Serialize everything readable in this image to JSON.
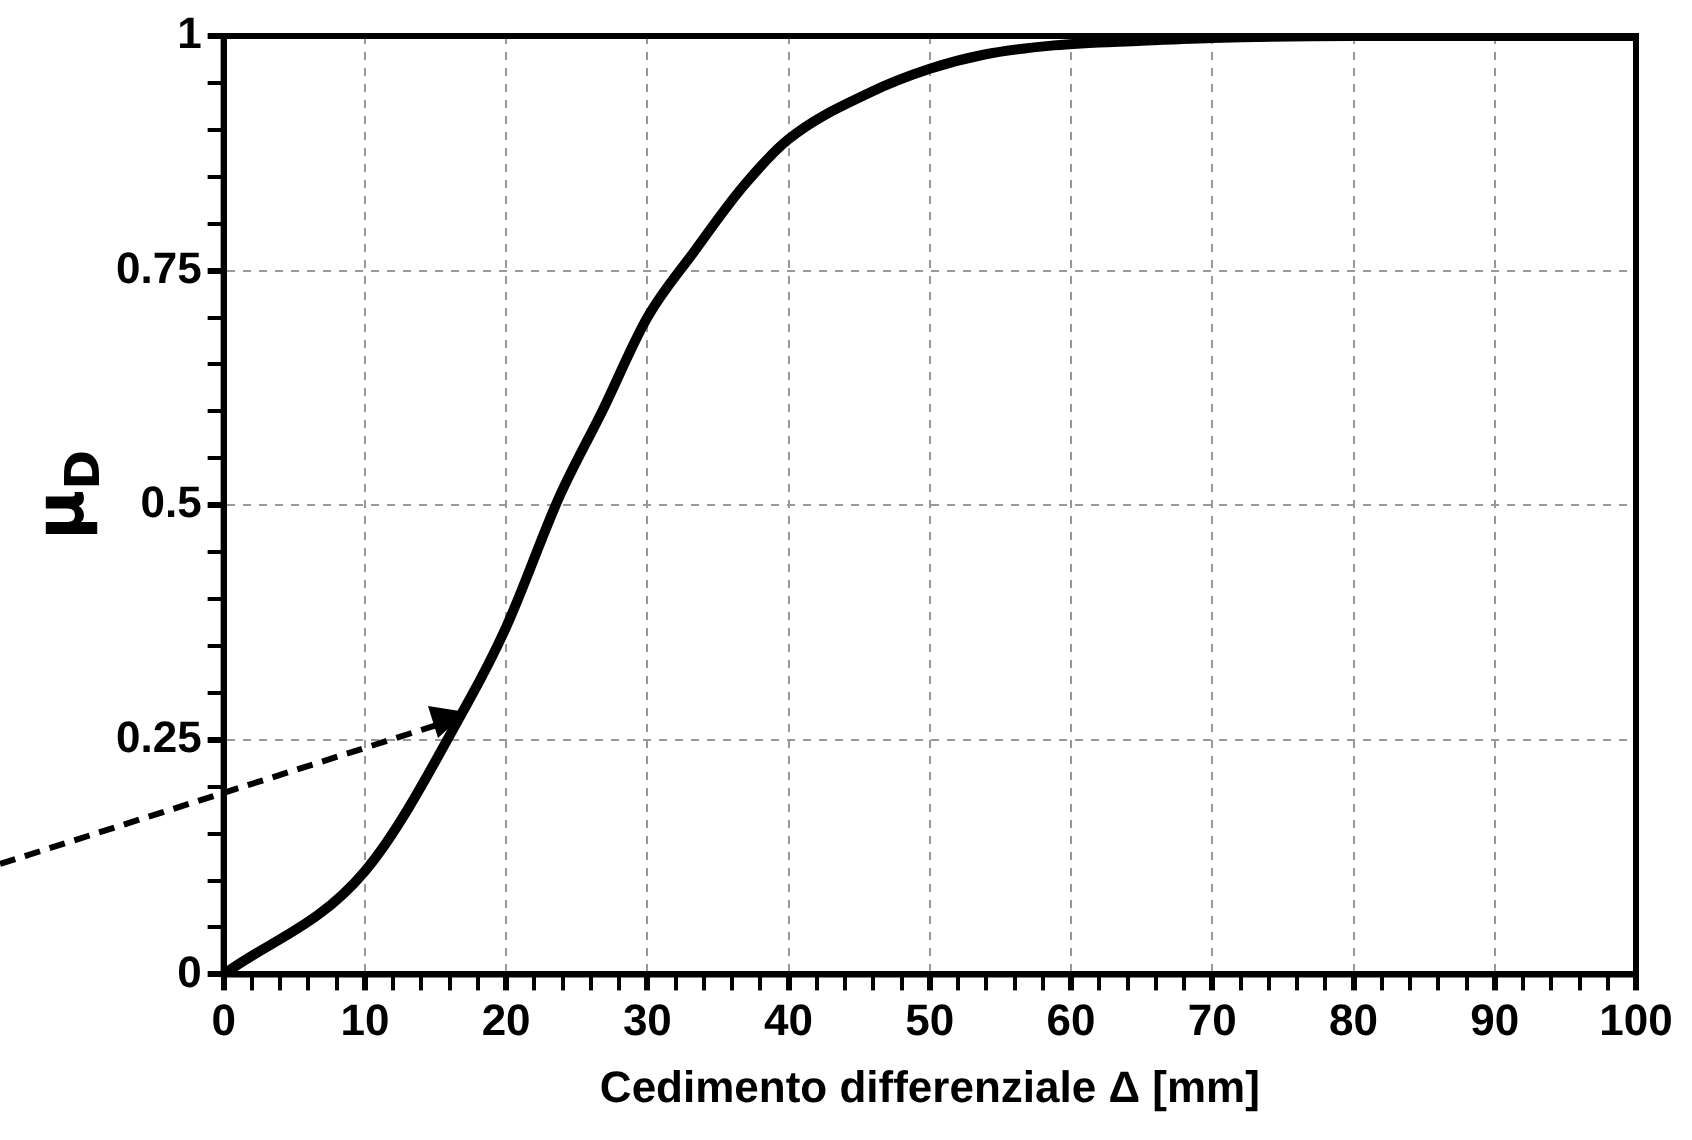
{
  "chart_data": {
    "type": "line",
    "xlabel": "Cedimento differenziale Δ [mm]",
    "ylabel": "μ$_{D}$",
    "xlim": [
      0,
      100
    ],
    "ylim": [
      0,
      1
    ],
    "xticks": [
      0,
      {
        "value": 2,
        "label": null
      },
      {
        "value": 4,
        "label": null
      },
      {
        "value": 6,
        "label": null
      },
      {
        "value": 8,
        "label": null
      },
      10,
      {
        "value": 12,
        "label": null
      },
      {
        "value": 14,
        "label": null
      },
      {
        "value": 16,
        "label": null
      },
      {
        "value": 18,
        "label": null
      },
      20,
      {
        "value": 22,
        "label": null
      },
      {
        "value": 24,
        "label": null
      },
      {
        "value": 26,
        "label": null
      },
      {
        "value": 28,
        "label": null
      },
      30,
      {
        "value": 32,
        "label": null
      },
      {
        "value": 34,
        "label": null
      },
      {
        "value": 36,
        "label": null
      },
      {
        "value": 38,
        "label": null
      },
      40,
      {
        "value": 42,
        "label": null
      },
      {
        "value": 44,
        "label": null
      },
      {
        "value": 46,
        "label": null
      },
      {
        "value": 48,
        "label": null
      },
      50,
      {
        "value": 52,
        "label": null
      },
      {
        "value": 54,
        "label": null
      },
      {
        "value": 56,
        "label": null
      },
      {
        "value": 58,
        "label": null
      },
      60,
      {
        "value": 62,
        "label": null
      },
      {
        "value": 64,
        "label": null
      },
      {
        "value": 66,
        "label": null
      },
      {
        "value": 68,
        "label": null
      },
      70,
      {
        "value": 72,
        "label": null
      },
      {
        "value": 74,
        "label": null
      },
      {
        "value": 76,
        "label": null
      },
      {
        "value": 78,
        "label": null
      },
      80,
      {
        "value": 82,
        "label": null
      },
      {
        "value": 84,
        "label": null
      },
      {
        "value": 86,
        "label": null
      },
      {
        "value": 88,
        "label": null
      },
      90,
      {
        "value": 92,
        "label": null
      },
      {
        "value": 94,
        "label": null
      },
      {
        "value": 96,
        "label": null
      },
      {
        "value": 98,
        "label": null
      },
      100
    ],
    "yticks": [
      0,
      {
        "value": 0.05,
        "label": null
      },
      {
        "value": 0.1,
        "label": null
      },
      {
        "value": 0.15,
        "label": null
      },
      {
        "value": 0.2,
        "label": null
      },
      0.25,
      {
        "value": 0.3,
        "label": null
      },
      {
        "value": 0.35,
        "label": null
      },
      {
        "value": 0.4,
        "label": null
      },
      {
        "value": 0.45,
        "label": null
      },
      0.5,
      {
        "value": 0.55,
        "label": null
      },
      {
        "value": 0.6,
        "label": null
      },
      {
        "value": 0.65,
        "label": null
      },
      {
        "value": 0.7,
        "label": null
      },
      0.75,
      {
        "value": 0.8,
        "label": null
      },
      {
        "value": 0.85,
        "label": null
      },
      {
        "value": 0.9,
        "label": null
      },
      {
        "value": 0.95,
        "label": null
      },
      1
    ],
    "grid": true,
    "marker": "none",
    "line_style": "solid",
    "legend": false,
    "series": [
      {
        "color": "#000000",
        "x": [
          0,
          10,
          17.3,
          20,
          23.8,
          26.8,
          30,
          33.3,
          36.8,
          40,
          45.8,
          50,
          53.8,
          58.8,
          65,
          70,
          80,
          90,
          100
        ],
        "values": [
          0,
          0.11,
          0.29,
          0.37,
          0.51,
          0.6,
          0.7,
          0.77,
          0.84,
          0.89,
          0.94,
          0.965,
          0.98,
          0.99,
          0.995,
          0.998,
          1,
          1,
          1
        ]
      }
    ]
  }
}
